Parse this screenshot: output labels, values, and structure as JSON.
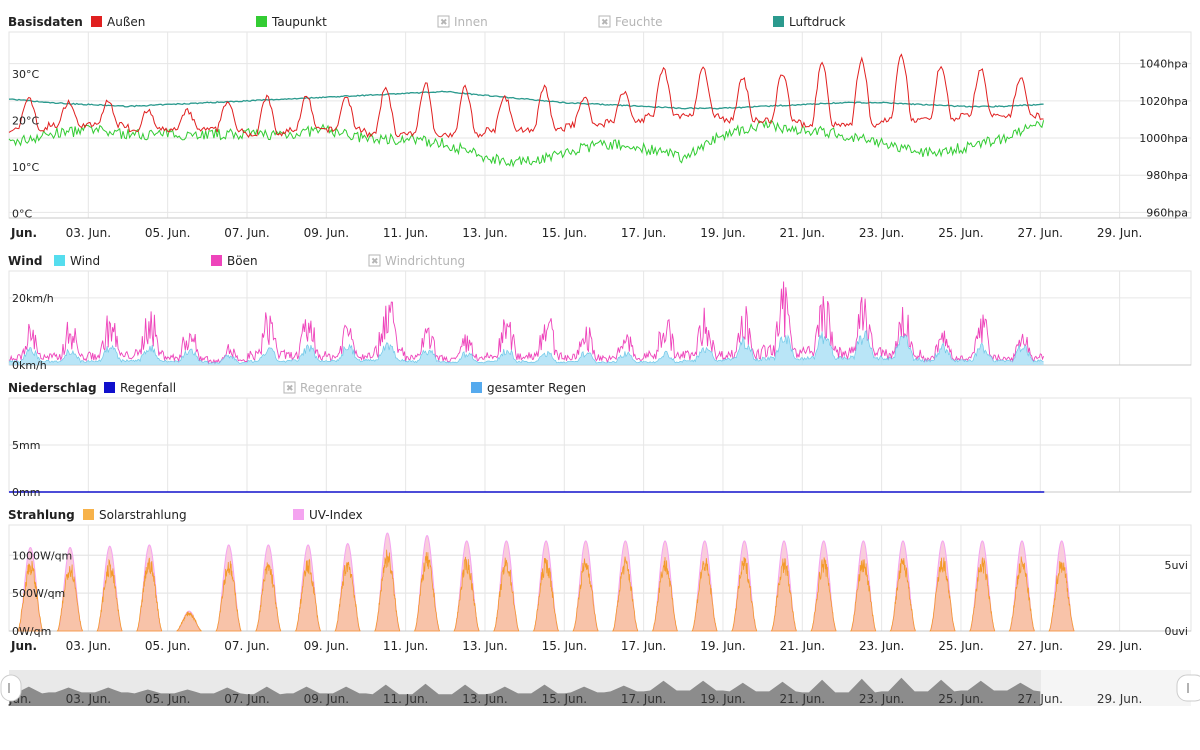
{
  "chart_data": [
    {
      "id": "basisdaten",
      "type": "line",
      "title": "Basisdaten",
      "legend": [
        {
          "name": "Außen",
          "color": "#e02020",
          "enabled": true
        },
        {
          "name": "Taupunkt",
          "color": "#33cc33",
          "enabled": true
        },
        {
          "name": "Innen",
          "color": "#b0b0b0",
          "enabled": false
        },
        {
          "name": "Feuchte",
          "color": "#b0b0b0",
          "enabled": false
        },
        {
          "name": "Luftdruck",
          "color": "#2b9a8e",
          "enabled": true
        }
      ],
      "y_left_ticks": [
        "30°C",
        "20°C",
        "10°C",
        "0°C"
      ],
      "y_left_values": [
        30,
        20,
        10,
        0
      ],
      "y_right_ticks": [
        "1040hpa",
        "1020hpa",
        "1000hpa",
        "980hpa",
        "960hpa"
      ],
      "y_right_values": [
        1040,
        1020,
        1000,
        980,
        960
      ],
      "ylim_left": [
        -1,
        39
      ],
      "ylim_right": [
        957,
        1057
      ],
      "series": [
        {
          "name": "Außen",
          "axis": "left",
          "color": "#e02020",
          "day_min": [
            18,
            19,
            19,
            18,
            18,
            18,
            17,
            18,
            18,
            17,
            17,
            17,
            18,
            18,
            19,
            20,
            21,
            21,
            20,
            20,
            19,
            19,
            20,
            20,
            21,
            21,
            20
          ],
          "day_max": [
            25,
            24,
            24,
            22,
            22,
            24,
            25,
            25,
            25,
            27,
            28,
            27,
            25,
            27,
            25,
            26,
            31,
            31,
            29,
            30,
            32,
            33,
            34,
            32,
            31,
            29,
            29
          ]
        },
        {
          "name": "Taupunkt",
          "axis": "left",
          "color": "#33cc33",
          "day_values": [
            15,
            17,
            18,
            17,
            17,
            17,
            17,
            17,
            18,
            16,
            16,
            15,
            12,
            11,
            13,
            15,
            14,
            12,
            17,
            19,
            18,
            17,
            15,
            13,
            14,
            16,
            19,
            19,
            18,
            17
          ]
        },
        {
          "name": "Luftdruck",
          "axis": "right",
          "color": "#2b9a8e",
          "day_values": [
            1021,
            1019,
            1018,
            1017,
            1018,
            1019,
            1020,
            1021,
            1022,
            1023,
            1024,
            1025,
            1023,
            1021,
            1019,
            1018,
            1017,
            1016,
            1016,
            1017,
            1018,
            1019,
            1019,
            1018,
            1017,
            1017,
            1018,
            1019,
            1018,
            1020
          ]
        }
      ]
    },
    {
      "id": "wind",
      "type": "area",
      "title": "Wind",
      "legend": [
        {
          "name": "Wind",
          "color": "#55ddee",
          "enabled": true
        },
        {
          "name": "Böen",
          "color": "#ee44bb",
          "enabled": true
        },
        {
          "name": "Windrichtung",
          "color": "#b0b0b0",
          "enabled": false
        }
      ],
      "y_left_ticks": [
        "20km/h",
        "0km/h"
      ],
      "y_left_values": [
        20,
        0
      ],
      "ylim_left": [
        0,
        28
      ],
      "series": [
        {
          "name": "Wind",
          "color": "#55ddee",
          "day_peak": [
            5,
            5,
            6,
            6,
            5,
            3,
            5,
            6,
            6,
            7,
            5,
            4,
            5,
            4,
            4,
            4,
            4,
            6,
            8,
            9,
            10,
            10,
            9,
            6,
            6,
            6,
            6
          ]
        },
        {
          "name": "Böen",
          "color": "#ee44bb",
          "day_peak": [
            12,
            13,
            15,
            17,
            12,
            6,
            16,
            15,
            14,
            22,
            11,
            9,
            14,
            16,
            12,
            10,
            15,
            16,
            17,
            23,
            21,
            20,
            17,
            10,
            14,
            10,
            12
          ]
        }
      ]
    },
    {
      "id": "niederschlag",
      "type": "area",
      "title": "Niederschlag",
      "legend": [
        {
          "name": "Regenfall",
          "color": "#1010cc",
          "enabled": true
        },
        {
          "name": "Regenrate",
          "color": "#b0b0b0",
          "enabled": false
        },
        {
          "name": "gesamter Regen",
          "color": "#55aaee",
          "enabled": true
        }
      ],
      "y_left_ticks": [
        "5mm",
        "0mm"
      ],
      "y_left_values": [
        5,
        0
      ],
      "ylim_left": [
        0,
        10
      ],
      "series": [
        {
          "name": "Regenfall",
          "color": "#1010cc",
          "day_values": [
            0,
            0,
            0,
            0,
            0,
            0,
            0,
            0,
            0,
            0,
            0,
            0,
            0,
            0,
            0,
            0,
            0,
            0,
            0,
            0,
            0,
            0,
            0,
            0,
            0,
            0,
            0
          ]
        },
        {
          "name": "gesamter Regen",
          "color": "#55aaee",
          "day_values": [
            0,
            0,
            0,
            0,
            0,
            0,
            0,
            0,
            0,
            0,
            0,
            0,
            0,
            0,
            0,
            0,
            0,
            0,
            0,
            0,
            0,
            0,
            0,
            0,
            0,
            0,
            0
          ]
        }
      ]
    },
    {
      "id": "strahlung",
      "type": "area",
      "title": "Strahlung",
      "legend": [
        {
          "name": "Solarstrahlung",
          "color": "#f7b24a",
          "enabled": true
        },
        {
          "name": "UV-Index",
          "color": "#f4a4f0",
          "enabled": true
        }
      ],
      "y_left_ticks": [
        "1000W/qm",
        "500W/qm",
        "0W/qm"
      ],
      "y_left_values": [
        1000,
        500,
        0
      ],
      "y_right_ticks": [
        "5uvi",
        "0uvi"
      ],
      "y_right_values": [
        5,
        0
      ],
      "ylim_left": [
        0,
        1400
      ],
      "ylim_right": [
        0,
        8
      ],
      "series": [
        {
          "name": "Solarstrahlung",
          "color": "#f7b24a",
          "day_peak": [
            920,
            900,
            900,
            950,
            250,
            920,
            900,
            920,
            950,
            1050,
            1000,
            950,
            950,
            950,
            950,
            950,
            950,
            950,
            950,
            950,
            950,
            950,
            950,
            950,
            950,
            950,
            950
          ]
        },
        {
          "name": "UV-Index",
          "color": "#f4a4f0",
          "day_peak": [
            6.3,
            6.3,
            6.4,
            6.5,
            1.5,
            6.5,
            6.5,
            6.5,
            6.6,
            7.4,
            7.2,
            6.8,
            6.8,
            6.8,
            6.8,
            6.8,
            6.8,
            6.8,
            6.8,
            6.8,
            6.8,
            6.8,
            6.8,
            6.8,
            6.8,
            6.8,
            6.8
          ]
        }
      ]
    }
  ],
  "x_axis": {
    "start_label": "Jun.",
    "labels": [
      "03. Jun.",
      "05. Jun.",
      "07. Jun.",
      "09. Jun.",
      "11. Jun.",
      "13. Jun.",
      "15. Jun.",
      "17. Jun.",
      "19. Jun.",
      "21. Jun.",
      "23. Jun.",
      "25. Jun.",
      "27. Jun.",
      "29. Jun."
    ],
    "label_days": [
      3,
      5,
      7,
      9,
      11,
      13,
      15,
      17,
      19,
      21,
      23,
      25,
      27,
      29
    ],
    "range_days": [
      1.0,
      30.8
    ],
    "data_end_day": 27.1
  },
  "navigator": {
    "start_label": "Jun.",
    "labels": [
      "03. Jun.",
      "05. Jun.",
      "07. Jun.",
      "09. Jun.",
      "11. Jun.",
      "13. Jun.",
      "15. Jun.",
      "17. Jun.",
      "19. Jun.",
      "21. Jun.",
      "23. Jun.",
      "25. Jun.",
      "27. Jun.",
      "29. Jun."
    ]
  }
}
